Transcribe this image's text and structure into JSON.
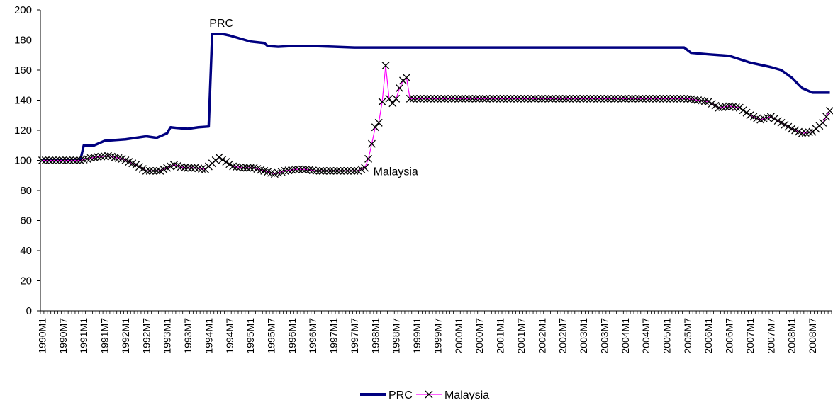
{
  "chart_data": {
    "type": "line",
    "title": "",
    "xlabel": "",
    "ylabel": "",
    "ylim": [
      0,
      200
    ],
    "yticks": [
      0,
      20,
      40,
      60,
      80,
      100,
      120,
      140,
      160,
      180,
      200
    ],
    "grid": false,
    "legend_position": "bottom",
    "xticklabels": [
      "1990M1",
      "1990M7",
      "1991M1",
      "1991M7",
      "1992M1",
      "1992M7",
      "1993M1",
      "1993M7",
      "1994M1",
      "1994M7",
      "1995M1",
      "1995M7",
      "1996M1",
      "1996M7",
      "1997M1",
      "1997M7",
      "1998M1",
      "1998M7",
      "1999M1",
      "1999M7",
      "2000M1",
      "2000M7",
      "2001M1",
      "2001M7",
      "2002M1",
      "2002M7",
      "2003M1",
      "2003M7",
      "2004M1",
      "2004M7",
      "2005M1",
      "2005M7",
      "2006M1",
      "2006M7",
      "2007M1",
      "2007M7",
      "2008M1",
      "2008M7"
    ],
    "x_start": "1990M1",
    "x_end": "2008M12",
    "series": [
      {
        "name": "PRC",
        "color": "#000080",
        "marker": "none",
        "points": [
          [
            "1990M1",
            100
          ],
          [
            "1990M12",
            100
          ],
          [
            "1991M1",
            110
          ],
          [
            "1991M4",
            110
          ],
          [
            "1991M7",
            113
          ],
          [
            "1992M1",
            114
          ],
          [
            "1992M7",
            116
          ],
          [
            "1992M10",
            115
          ],
          [
            "1993M1",
            118
          ],
          [
            "1993M2",
            122
          ],
          [
            "1993M4",
            121.5
          ],
          [
            "1993M7",
            121
          ],
          [
            "1993M10",
            122
          ],
          [
            "1994M1",
            122.5
          ],
          [
            "1994M2",
            184
          ],
          [
            "1994M5",
            184
          ],
          [
            "1994M7",
            183
          ],
          [
            "1994M10",
            181
          ],
          [
            "1995M1",
            179
          ],
          [
            "1995M5",
            178
          ],
          [
            "1995M6",
            176
          ],
          [
            "1995M9",
            175.5
          ],
          [
            "1996M1",
            176
          ],
          [
            "1996M7",
            176
          ],
          [
            "1997M1",
            175.5
          ],
          [
            "1997M7",
            175
          ],
          [
            "2005M6",
            175
          ],
          [
            "2005M8",
            171.5
          ],
          [
            "2006M1",
            170.5
          ],
          [
            "2006M7",
            169.5
          ],
          [
            "2007M1",
            165
          ],
          [
            "2007M7",
            162
          ],
          [
            "2007M10",
            160
          ],
          [
            "2008M1",
            155
          ],
          [
            "2008M4",
            148
          ],
          [
            "2008M7",
            145
          ],
          [
            "2008M12",
            145
          ]
        ]
      },
      {
        "name": "Malaysia",
        "color": "#ff00ff",
        "marker": "x",
        "points": [
          [
            "1990M1",
            100
          ],
          [
            "1990M7",
            100
          ],
          [
            "1990M12",
            100
          ],
          [
            "1991M4",
            102
          ],
          [
            "1991M8",
            103
          ],
          [
            "1991M12",
            101
          ],
          [
            "1992M4",
            97
          ],
          [
            "1992M7",
            93
          ],
          [
            "1992M11",
            93
          ],
          [
            "1993M1",
            95
          ],
          [
            "1993M3",
            97
          ],
          [
            "1993M6",
            95
          ],
          [
            "1993M9",
            95
          ],
          [
            "1993M12",
            94
          ],
          [
            "1994M2",
            98
          ],
          [
            "1994M4",
            102
          ],
          [
            "1994M6",
            99
          ],
          [
            "1994M8",
            96
          ],
          [
            "1994M11",
            95
          ],
          [
            "1995M2",
            95
          ],
          [
            "1995M5",
            93
          ],
          [
            "1995M8",
            91
          ],
          [
            "1995M11",
            93
          ],
          [
            "1996M2",
            94
          ],
          [
            "1996M5",
            94
          ],
          [
            "1996M8",
            93
          ],
          [
            "1996M11",
            93
          ],
          [
            "1997M2",
            93
          ],
          [
            "1997M5",
            93
          ],
          [
            "1997M8",
            93
          ],
          [
            "1997M10",
            95
          ],
          [
            "1997M11",
            101
          ],
          [
            "1997M12",
            111
          ],
          [
            "1998M1",
            122
          ],
          [
            "1998M2",
            125
          ],
          [
            "1998M3",
            139
          ],
          [
            "1998M4",
            163
          ],
          [
            "1998M5",
            141
          ],
          [
            "1998M6",
            138
          ],
          [
            "1998M7",
            141
          ],
          [
            "1998M8",
            148
          ],
          [
            "1998M9",
            153
          ],
          [
            "1998M10",
            155
          ],
          [
            "1998M11",
            141
          ],
          [
            "1999M1",
            141
          ],
          [
            "2000M1",
            141
          ],
          [
            "2001M1",
            141
          ],
          [
            "2002M1",
            141
          ],
          [
            "2003M1",
            141
          ],
          [
            "2004M1",
            141
          ],
          [
            "2005M1",
            141
          ],
          [
            "2005M7",
            141
          ],
          [
            "2005M10",
            140
          ],
          [
            "2006M1",
            139
          ],
          [
            "2006M4",
            135
          ],
          [
            "2006M7",
            136
          ],
          [
            "2006M10",
            135
          ],
          [
            "2007M1",
            130
          ],
          [
            "2007M4",
            127
          ],
          [
            "2007M7",
            129
          ],
          [
            "2007M10",
            125
          ],
          [
            "2008M1",
            121
          ],
          [
            "2008M4",
            118
          ],
          [
            "2008M7",
            119
          ],
          [
            "2008M10",
            125
          ],
          [
            "2008M12",
            133
          ]
        ]
      }
    ],
    "annotations": [
      {
        "text": "PRC",
        "x": "1994M2",
        "y": 184
      },
      {
        "text": "Malaysia",
        "x": "1997M10",
        "y": 93
      }
    ]
  }
}
